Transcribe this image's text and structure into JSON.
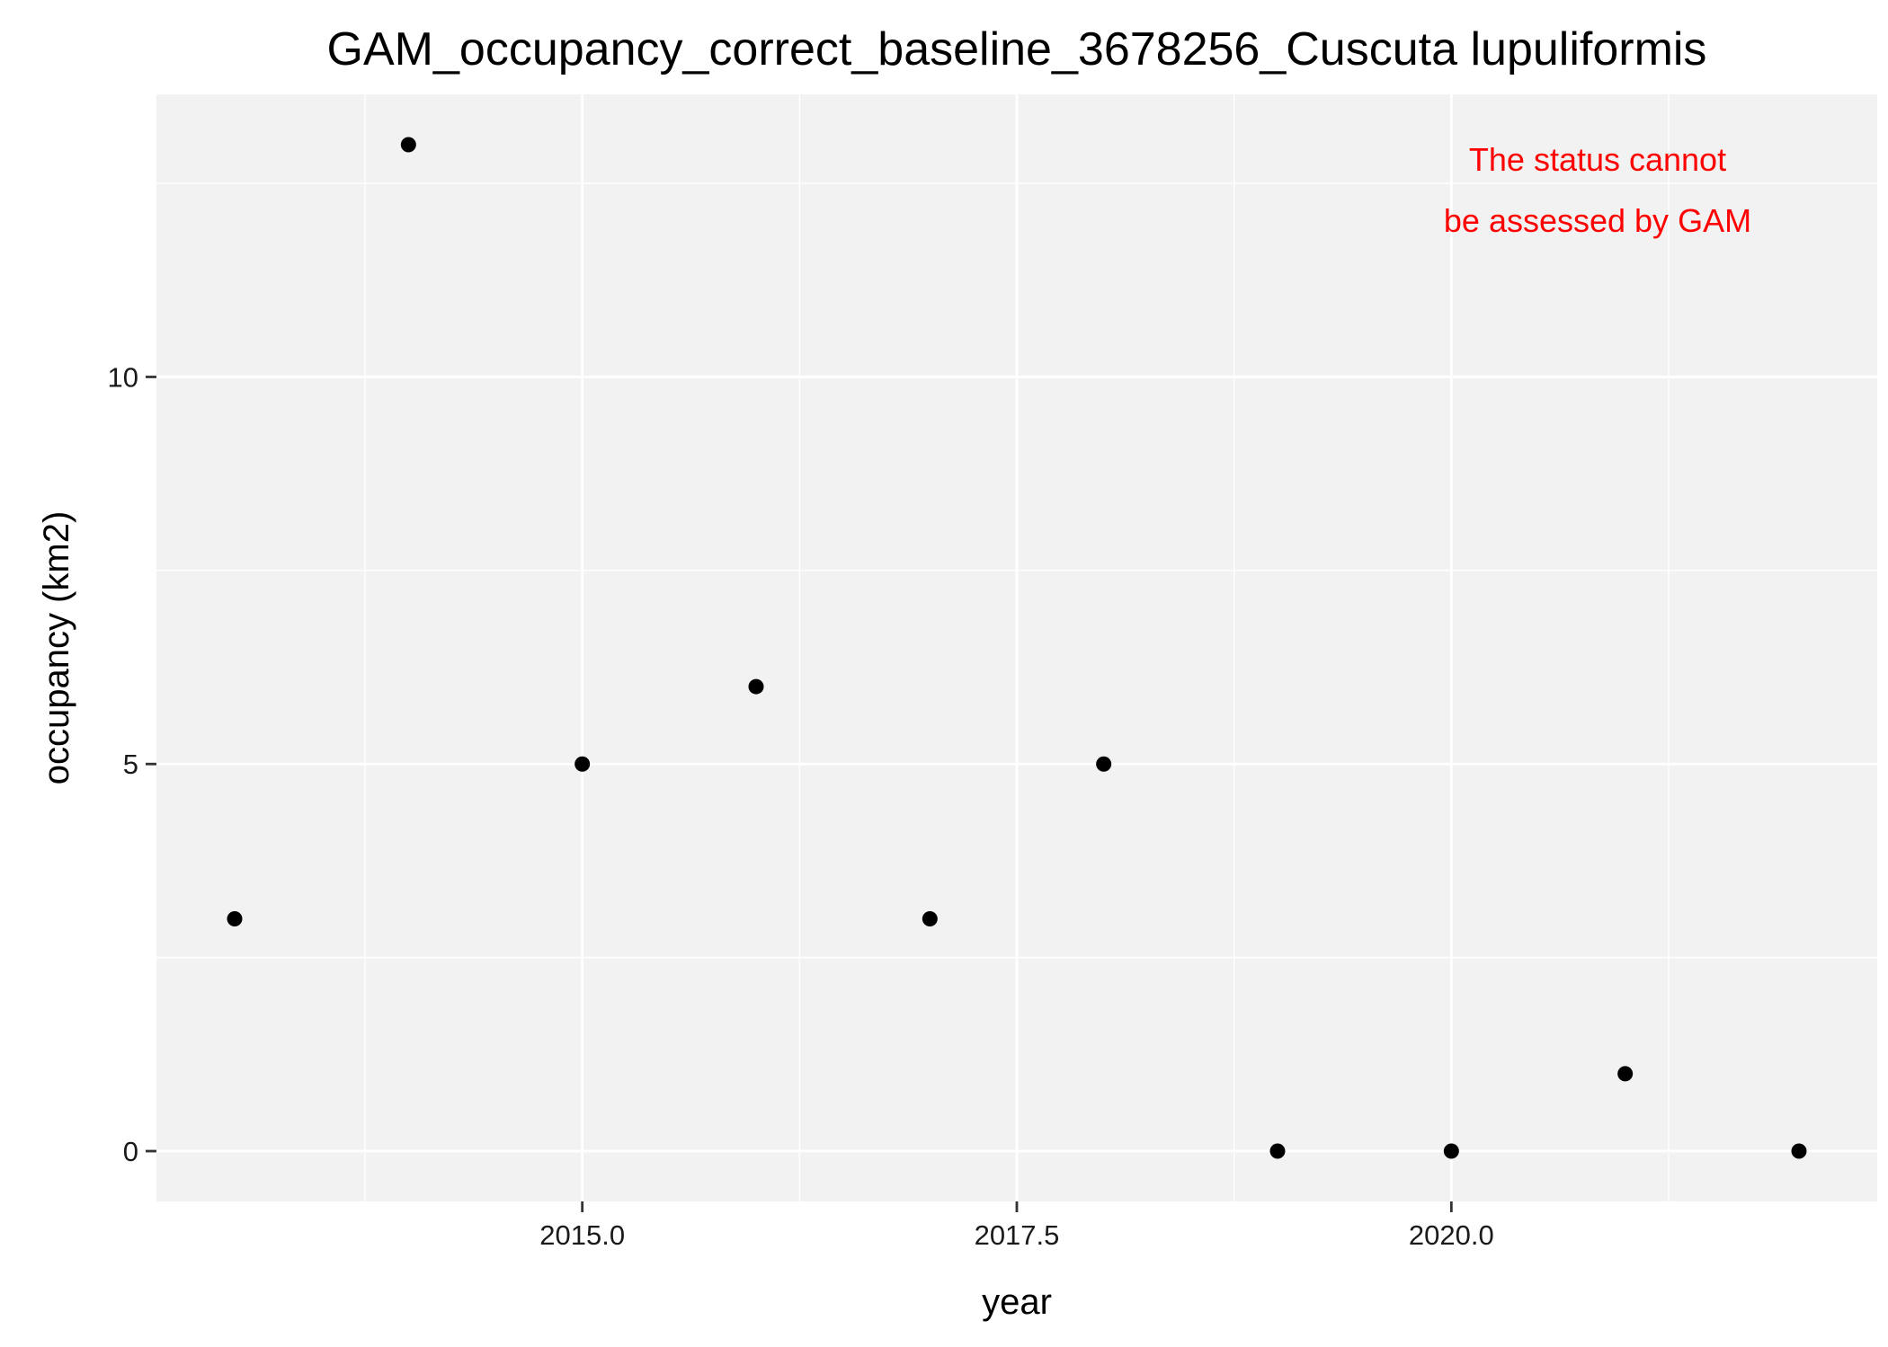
{
  "chart_data": {
    "type": "scatter",
    "title": "GAM_occupancy_correct_baseline_3678256_Cuscuta lupuliformis",
    "xlabel": "year",
    "ylabel": "occupancy (km2)",
    "x_ticks": [
      2015.0,
      2017.5,
      2020.0
    ],
    "x_tick_labels": [
      "2015.0",
      "2017.5",
      "2020.0"
    ],
    "y_ticks": [
      0,
      5,
      10
    ],
    "y_tick_labels": [
      "0",
      "5",
      "10"
    ],
    "xlim": [
      2012.55,
      2022.45
    ],
    "ylim": [
      -0.65,
      13.65
    ],
    "grid": true,
    "points": [
      {
        "x": 2013,
        "y": 3
      },
      {
        "x": 2014,
        "y": 13
      },
      {
        "x": 2015,
        "y": 5
      },
      {
        "x": 2016,
        "y": 6
      },
      {
        "x": 2017,
        "y": 3
      },
      {
        "x": 2018,
        "y": 5
      },
      {
        "x": 2019,
        "y": 0
      },
      {
        "x": 2020,
        "y": 0
      },
      {
        "x": 2021,
        "y": 1
      },
      {
        "x": 2022,
        "y": 0
      }
    ],
    "annotation": {
      "lines": [
        "The status cannot",
        "be assessed by GAM"
      ],
      "color": "#ff0000",
      "position": "top-right"
    },
    "colors": {
      "panel_background": "#f2f2f2",
      "grid": "#ffffff",
      "point": "#000000"
    }
  }
}
